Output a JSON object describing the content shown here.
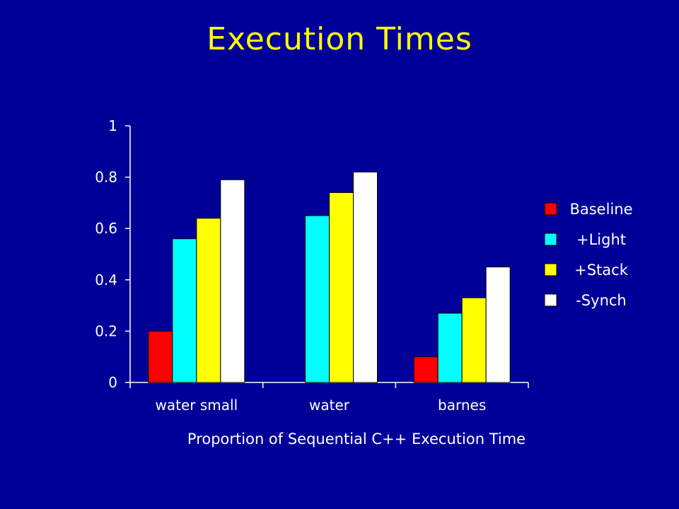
{
  "slide": {
    "title": "Execution Times"
  },
  "chart_data": {
    "type": "bar",
    "title": "",
    "xlabel": "Proportion of Sequential C++ Execution Time",
    "ylabel": "",
    "ylim": [
      0,
      1
    ],
    "yticks": [
      "0",
      "0.2",
      "0.4",
      "0.6",
      "0.8",
      "1"
    ],
    "categories": [
      "water small",
      "water",
      "barnes"
    ],
    "series": [
      {
        "name": "Baseline",
        "color": "#ff0000",
        "values": [
          0.2,
          null,
          0.1
        ]
      },
      {
        "name": "+Light",
        "color": "#00ffff",
        "values": [
          0.56,
          0.65,
          0.27
        ]
      },
      {
        "name": "+Stack",
        "color": "#ffff00",
        "values": [
          0.64,
          0.74,
          0.33
        ]
      },
      {
        "name": "-Synch",
        "color": "#ffffff",
        "values": [
          0.79,
          0.82,
          0.45
        ]
      }
    ],
    "grid": false,
    "legend_position": "right"
  }
}
